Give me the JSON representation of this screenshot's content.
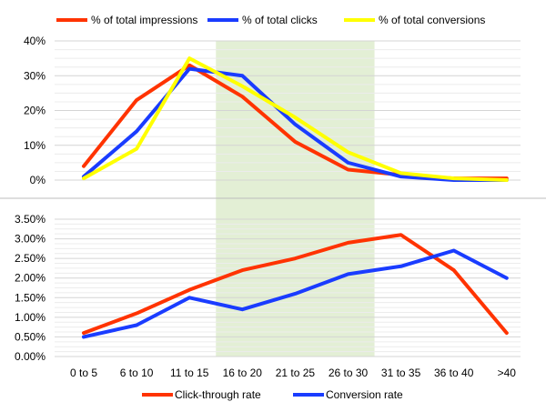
{
  "chart_data": [
    {
      "type": "line",
      "categories": [
        "0 to 5",
        "6 to 10",
        "11 to 15",
        "16 to 20",
        "21 to 25",
        "26 to 30",
        "31 to 35",
        "36 to 40",
        ">40"
      ],
      "series": [
        {
          "name": "% of total impressions",
          "color": "#ff3300",
          "values": [
            4,
            23,
            33,
            24,
            11,
            3,
            1.5,
            0.5,
            0.5
          ]
        },
        {
          "name": "% of total clicks",
          "color": "#1a3cff",
          "values": [
            1,
            14,
            32,
            30,
            16,
            5,
            1,
            0,
            0
          ]
        },
        {
          "name": "% of total conversions",
          "color": "#ffff00",
          "values": [
            0.5,
            9,
            35,
            27,
            18,
            8,
            2,
            0.5,
            0
          ]
        }
      ],
      "ylim": [
        0,
        40
      ],
      "yticks": [
        "0%",
        "10%",
        "20%",
        "30%",
        "40%"
      ],
      "legend_position": "top",
      "grid": true
    },
    {
      "type": "line",
      "categories": [
        "0 to 5",
        "6 to 10",
        "11 to 15",
        "16 to 20",
        "21 to 25",
        "26 to 30",
        "31 to 35",
        "36 to 40",
        ">40"
      ],
      "series": [
        {
          "name": "Click-through rate",
          "color": "#ff3300",
          "values": [
            0.6,
            1.1,
            1.7,
            2.2,
            2.5,
            2.9,
            3.1,
            2.2,
            0.6
          ]
        },
        {
          "name": "Conversion rate",
          "color": "#1a3cff",
          "values": [
            0.5,
            0.8,
            1.5,
            1.2,
            1.6,
            2.1,
            2.3,
            2.7,
            2.0
          ]
        }
      ],
      "ylim": [
        0,
        3.5
      ],
      "yticks": [
        "0.00%",
        "0.50%",
        "1.00%",
        "1.50%",
        "2.00%",
        "2.50%",
        "3.00%",
        "3.50%"
      ],
      "legend_position": "bottom",
      "grid": true
    }
  ],
  "highlight": {
    "from_category": "16 to 20",
    "to_category": "26 to 30",
    "color": "#e3efd5"
  }
}
